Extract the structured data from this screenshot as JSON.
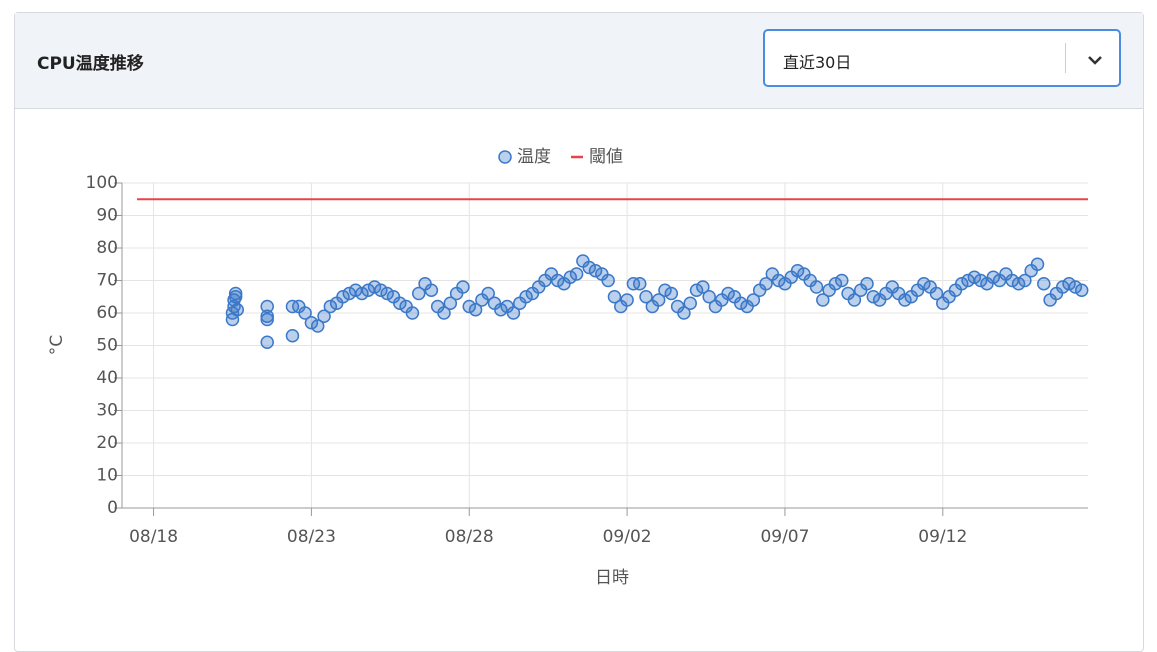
{
  "header": {
    "title": "CPU温度推移",
    "select": "直近30日"
  },
  "chart_data": {
    "type": "scatter",
    "xlabel": "日時",
    "ylabel": "°C",
    "xlim": [
      -1,
      29.6
    ],
    "xticks": [
      {
        "value": 0,
        "label": "08/18"
      },
      {
        "value": 5,
        "label": "08/23"
      },
      {
        "value": 10,
        "label": "08/28"
      },
      {
        "value": 15,
        "label": "09/02"
      },
      {
        "value": 20,
        "label": "09/07"
      },
      {
        "value": 25,
        "label": "09/12"
      }
    ],
    "ylim": [
      0,
      100
    ],
    "yticks": [
      0,
      10,
      20,
      30,
      40,
      50,
      60,
      70,
      80,
      90,
      100
    ],
    "grid": true,
    "series": [
      {
        "name": "温度",
        "color": "#3b78c8",
        "x": [
          2.5,
          2.5,
          2.55,
          2.55,
          2.6,
          2.6,
          2.65,
          3.6,
          3.6,
          3.6,
          3.6,
          4.4,
          4.4,
          4.6,
          4.8,
          5.0,
          5.2,
          5.4,
          5.6,
          5.8,
          6.0,
          6.2,
          6.4,
          6.6,
          6.8,
          7.0,
          7.2,
          7.4,
          7.6,
          7.8,
          8.0,
          8.2,
          8.4,
          8.6,
          8.8,
          9.0,
          9.2,
          9.4,
          9.6,
          9.8,
          10.0,
          10.2,
          10.4,
          10.6,
          10.8,
          11.0,
          11.2,
          11.4,
          11.6,
          11.8,
          12.0,
          12.2,
          12.4,
          12.6,
          12.8,
          13.0,
          13.2,
          13.4,
          13.6,
          13.8,
          14.0,
          14.2,
          14.4,
          14.6,
          14.8,
          15.0,
          15.2,
          15.4,
          15.6,
          15.8,
          16.0,
          16.2,
          16.4,
          16.6,
          16.8,
          17.0,
          17.2,
          17.4,
          17.6,
          17.8,
          18.0,
          18.2,
          18.4,
          18.6,
          18.8,
          19.0,
          19.2,
          19.4,
          19.6,
          19.8,
          20.0,
          20.2,
          20.4,
          20.6,
          20.8,
          21.0,
          21.2,
          21.4,
          21.6,
          21.8,
          22.0,
          22.2,
          22.4,
          22.6,
          22.8,
          23.0,
          23.2,
          23.4,
          23.6,
          23.8,
          24.0,
          24.2,
          24.4,
          24.6,
          24.8,
          25.0,
          25.2,
          25.4,
          25.6,
          25.8,
          26.0,
          26.2,
          26.4,
          26.6,
          26.8,
          27.0,
          27.2,
          27.4,
          27.6,
          27.8,
          28.0,
          28.2,
          28.4,
          28.6,
          28.8,
          29.0,
          29.2,
          29.4
        ],
        "values": [
          58,
          60,
          62,
          64,
          66,
          65,
          61,
          51,
          58,
          59,
          62,
          53,
          62,
          62,
          60,
          57,
          56,
          59,
          62,
          63,
          65,
          66,
          67,
          66,
          67,
          68,
          67,
          66,
          65,
          63,
          62,
          60,
          66,
          69,
          67,
          62,
          60,
          63,
          66,
          68,
          62,
          61,
          64,
          66,
          63,
          61,
          62,
          60,
          63,
          65,
          66,
          68,
          70,
          72,
          70,
          69,
          71,
          72,
          76,
          74,
          73,
          72,
          70,
          65,
          62,
          64,
          69,
          69,
          65,
          62,
          64,
          67,
          66,
          62,
          60,
          63,
          67,
          68,
          65,
          62,
          64,
          66,
          65,
          63,
          62,
          64,
          67,
          69,
          72,
          70,
          69,
          71,
          73,
          72,
          70,
          68,
          64,
          67,
          69,
          70,
          66,
          64,
          67,
          69,
          65,
          64,
          66,
          68,
          66,
          64,
          65,
          67,
          69,
          68,
          66,
          63,
          65,
          67,
          69,
          70,
          71,
          70,
          69,
          71,
          70,
          72,
          70,
          69,
          70,
          73,
          75,
          69,
          64,
          66,
          68,
          69,
          68,
          67
        ]
      }
    ],
    "lines": [
      {
        "name": "閾値",
        "color": "#e8424b",
        "value": 95
      }
    ]
  }
}
